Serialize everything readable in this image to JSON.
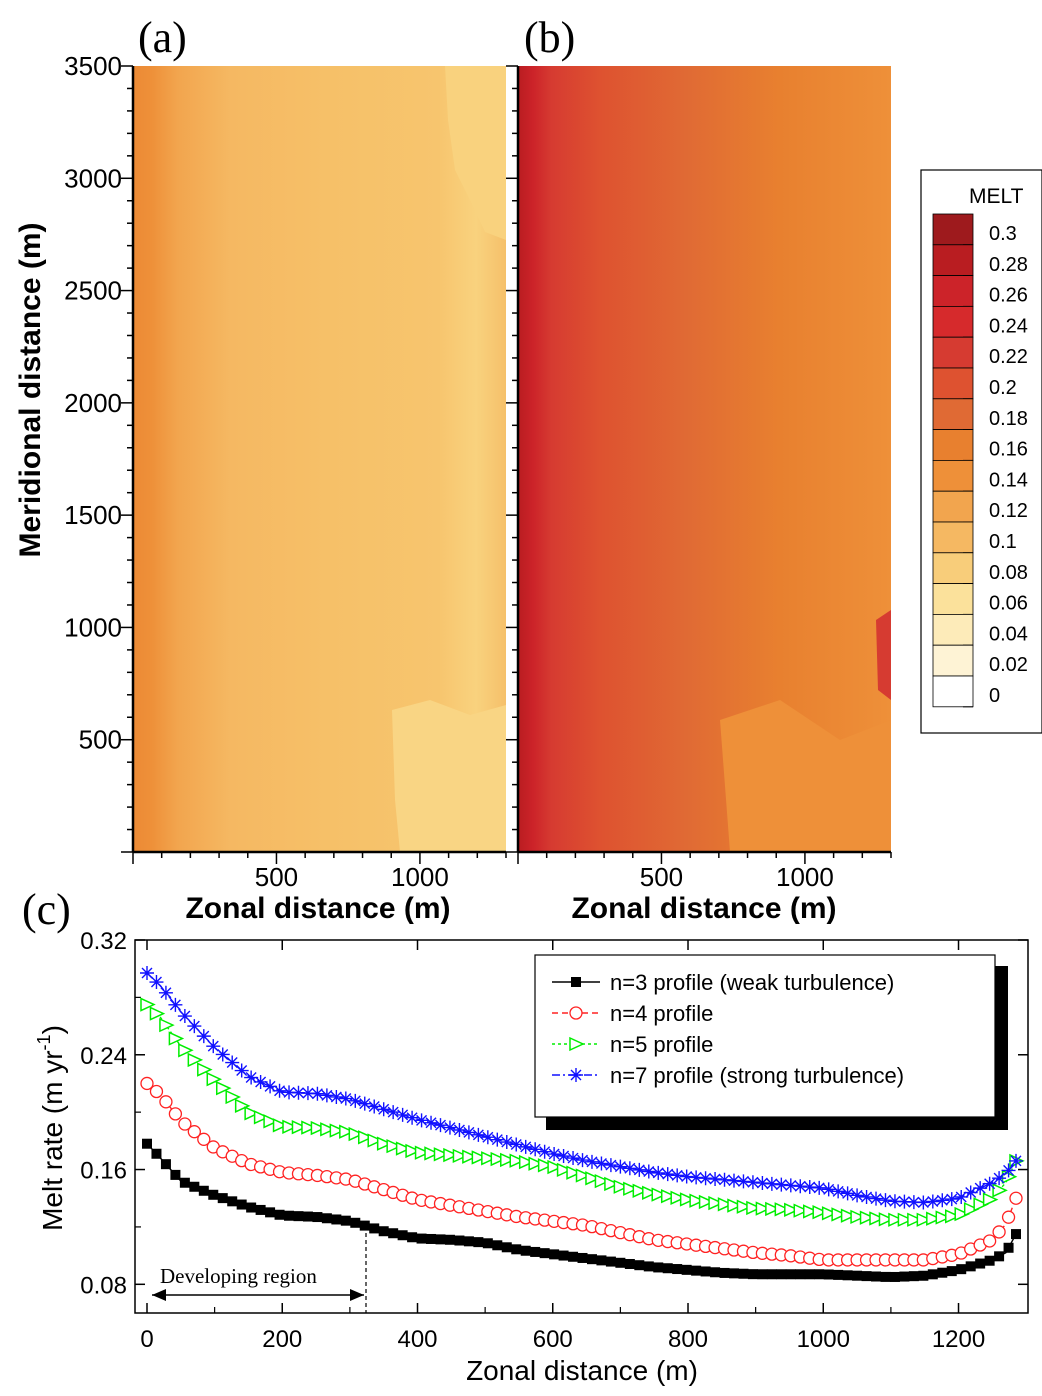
{
  "panel_labels": {
    "a": "(a)",
    "b": "(b)",
    "c": "(c)"
  },
  "colorbar": {
    "title": "MELT",
    "levels": [
      "0.3",
      "0.28",
      "0.26",
      "0.24",
      "0.22",
      "0.2",
      "0.18",
      "0.16",
      "0.14",
      "0.12",
      "0.1",
      "0.08",
      "0.06",
      "0.04",
      "0.02",
      "0"
    ],
    "colors": [
      "#9e1a1d",
      "#b91d21",
      "#cc2329",
      "#d62a2c",
      "#d63b31",
      "#de5230",
      "#e06a34",
      "#e8802f",
      "#ee9039",
      "#f2a54e",
      "#f5b862",
      "#f8cd7a",
      "#fbe19b",
      "#fdebb9",
      "#fef3d5",
      "#ffffff"
    ]
  },
  "map_axes": {
    "ylabel": "Meridional distance (m)",
    "xlabel_a": "Zonal distance (m)",
    "xlabel_b": "Zonal distance (m)",
    "yticks": [
      "3500",
      "3000",
      "2500",
      "2000",
      "1500",
      "1000",
      "500"
    ],
    "xticks": [
      "500",
      "1000"
    ]
  },
  "chart_data": [
    {
      "type": "heatmap",
      "panel": "(a)",
      "x_range": [
        0,
        1300
      ],
      "y_range": [
        0,
        3500
      ],
      "zonal_profile": {
        "x": [
          0,
          50,
          150,
          350,
          700,
          1000,
          1150,
          1300
        ],
        "melt": [
          0.15,
          0.14,
          0.13,
          0.12,
          0.11,
          0.11,
          0.08,
          0.09
        ]
      }
    },
    {
      "type": "heatmap",
      "panel": "(b)",
      "x_range": [
        0,
        1300
      ],
      "y_range": [
        0,
        3500
      ],
      "zonal_profile": {
        "x": [
          0,
          30,
          100,
          300,
          600,
          1000,
          1300
        ],
        "melt": [
          0.24,
          0.22,
          0.2,
          0.18,
          0.16,
          0.14,
          0.14
        ]
      }
    },
    {
      "type": "line",
      "panel": "(c)",
      "xlabel": "Zonal distance (m)",
      "ylabel": "Melt rate (m yr-1)",
      "ylabel_main": "Melt rate (m yr",
      "ylabel_sup": "-1",
      "ylabel_close": ")",
      "xlim": [
        0,
        1300
      ],
      "ylim": [
        0.06,
        0.32
      ],
      "xticks": [
        "0",
        "200",
        "400",
        "600",
        "800",
        "1000",
        "1200"
      ],
      "yticks": [
        "0.08",
        "0.16",
        "0.24",
        "0.32"
      ],
      "annotation": "Developing region",
      "annotation_range": [
        0,
        330
      ],
      "legend_position": "top-right",
      "series": [
        {
          "name": "n=3 profile (weak turbulence)",
          "color": "#000000",
          "marker": "square",
          "x": [
            0,
            20,
            50,
            100,
            150,
            200,
            250,
            300,
            350,
            400,
            450,
            500,
            550,
            600,
            650,
            700,
            750,
            800,
            850,
            900,
            950,
            1000,
            1050,
            1100,
            1150,
            1200,
            1250,
            1270,
            1285
          ],
          "y": [
            0.178,
            0.168,
            0.152,
            0.142,
            0.134,
            0.128,
            0.127,
            0.124,
            0.117,
            0.112,
            0.111,
            0.109,
            0.104,
            0.101,
            0.098,
            0.095,
            0.092,
            0.09,
            0.088,
            0.087,
            0.087,
            0.087,
            0.086,
            0.085,
            0.086,
            0.09,
            0.097,
            0.102,
            0.115
          ]
        },
        {
          "name": "n=4 profile",
          "color": "#ff2222",
          "marker": "circle",
          "x": [
            0,
            20,
            50,
            100,
            150,
            200,
            250,
            300,
            350,
            400,
            450,
            500,
            550,
            600,
            650,
            700,
            750,
            800,
            850,
            900,
            950,
            1000,
            1050,
            1100,
            1150,
            1200,
            1250,
            1270,
            1285
          ],
          "y": [
            0.22,
            0.212,
            0.194,
            0.175,
            0.164,
            0.158,
            0.156,
            0.153,
            0.146,
            0.139,
            0.135,
            0.131,
            0.127,
            0.124,
            0.121,
            0.116,
            0.111,
            0.108,
            0.105,
            0.102,
            0.1,
            0.097,
            0.097,
            0.097,
            0.097,
            0.101,
            0.111,
            0.122,
            0.14
          ]
        },
        {
          "name": "n=5 profile",
          "color": "#00ee00",
          "marker": "triangle",
          "x": [
            0,
            20,
            50,
            100,
            150,
            200,
            250,
            300,
            350,
            400,
            450,
            500,
            550,
            600,
            650,
            700,
            750,
            800,
            850,
            900,
            950,
            1000,
            1050,
            1100,
            1150,
            1200,
            1250,
            1270,
            1285
          ],
          "y": [
            0.275,
            0.266,
            0.246,
            0.222,
            0.2,
            0.19,
            0.189,
            0.186,
            0.178,
            0.172,
            0.17,
            0.168,
            0.166,
            0.162,
            0.155,
            0.148,
            0.143,
            0.139,
            0.136,
            0.133,
            0.132,
            0.13,
            0.127,
            0.125,
            0.125,
            0.128,
            0.14,
            0.151,
            0.166
          ]
        },
        {
          "name": "n=7 profile (strong turbulence)",
          "color": "#1111ff",
          "marker": "star",
          "x": [
            0,
            20,
            50,
            100,
            150,
            200,
            250,
            300,
            350,
            400,
            450,
            500,
            550,
            600,
            650,
            700,
            750,
            800,
            850,
            900,
            950,
            1000,
            1050,
            1100,
            1150,
            1200,
            1250,
            1270,
            1285
          ],
          "y": [
            0.297,
            0.288,
            0.27,
            0.245,
            0.225,
            0.214,
            0.213,
            0.209,
            0.202,
            0.195,
            0.189,
            0.183,
            0.177,
            0.171,
            0.166,
            0.162,
            0.158,
            0.155,
            0.153,
            0.151,
            0.149,
            0.147,
            0.142,
            0.138,
            0.137,
            0.14,
            0.151,
            0.157,
            0.166
          ]
        }
      ]
    }
  ]
}
